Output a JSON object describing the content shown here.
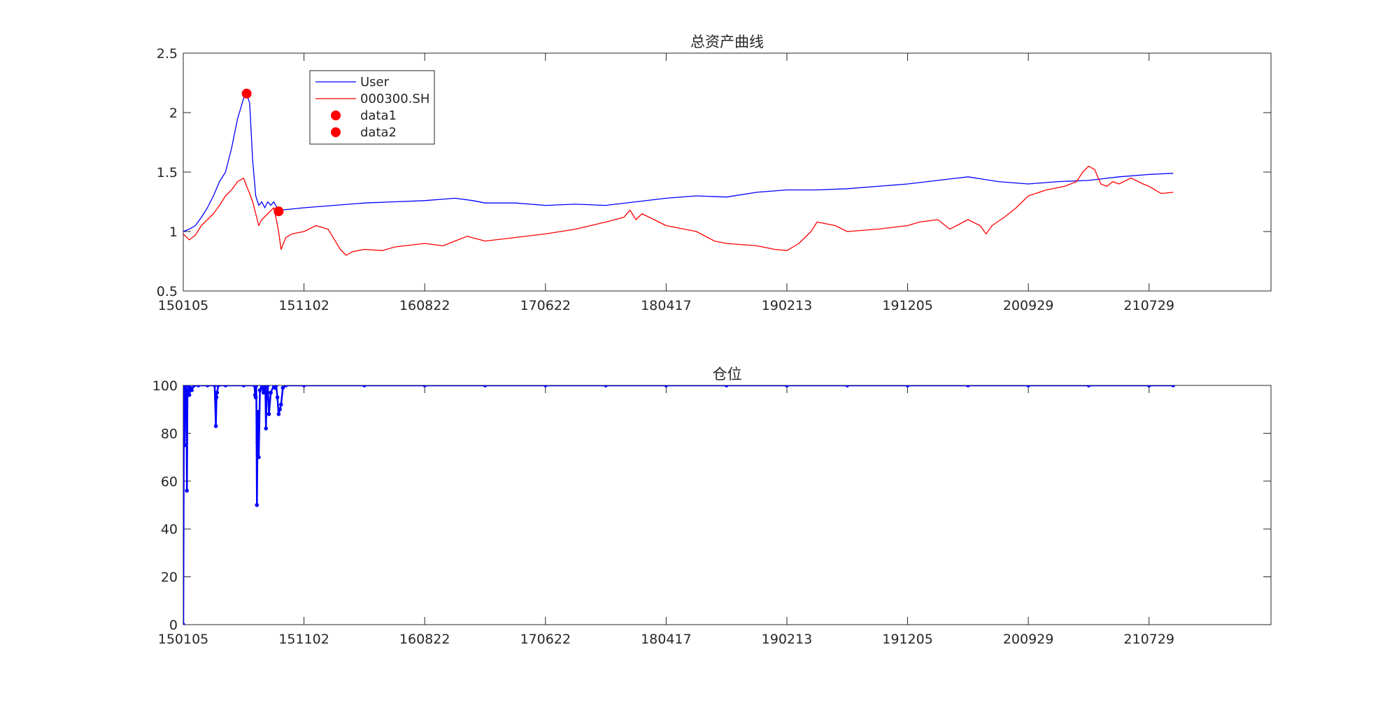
{
  "chart_data": [
    {
      "type": "line",
      "title": "总资产曲线",
      "xlabel": "",
      "ylabel": "",
      "ylim": [
        0.5,
        2.5
      ],
      "yticks": [
        "0.5",
        "1",
        "1.5",
        "2",
        "2.5"
      ],
      "x_index_range": [
        0,
        1802
      ],
      "x_ticks": [
        {
          "index": 0,
          "label": "150105"
        },
        {
          "index": 200,
          "label": "151102"
        },
        {
          "index": 400,
          "label": "160822"
        },
        {
          "index": 600,
          "label": "170622"
        },
        {
          "index": 800,
          "label": "180417"
        },
        {
          "index": 1000,
          "label": "190213"
        },
        {
          "index": 1200,
          "label": "191205"
        },
        {
          "index": 1400,
          "label": "200929"
        },
        {
          "index": 1600,
          "label": "210729"
        }
      ],
      "grid": false,
      "legend_position": "top-left",
      "series": [
        {
          "name": "User",
          "color": "#0000ff",
          "x": [
            0,
            10,
            20,
            30,
            40,
            50,
            60,
            70,
            80,
            90,
            100,
            105,
            110,
            115,
            120,
            125,
            130,
            135,
            140,
            145,
            150,
            155,
            158,
            162,
            200,
            250,
            300,
            350,
            400,
            450,
            480,
            500,
            550,
            600,
            650,
            700,
            750,
            800,
            850,
            900,
            950,
            1000,
            1050,
            1100,
            1150,
            1200,
            1250,
            1300,
            1350,
            1400,
            1450,
            1500,
            1550,
            1600,
            1640
          ],
          "y": [
            1.0,
            1.02,
            1.05,
            1.12,
            1.2,
            1.3,
            1.42,
            1.5,
            1.7,
            1.95,
            2.12,
            2.16,
            2.08,
            1.6,
            1.3,
            1.22,
            1.25,
            1.2,
            1.25,
            1.22,
            1.25,
            1.2,
            1.19,
            1.18,
            1.2,
            1.22,
            1.24,
            1.25,
            1.26,
            1.28,
            1.26,
            1.24,
            1.24,
            1.22,
            1.23,
            1.22,
            1.25,
            1.28,
            1.3,
            1.29,
            1.33,
            1.35,
            1.35,
            1.36,
            1.38,
            1.4,
            1.43,
            1.46,
            1.42,
            1.4,
            1.42,
            1.43,
            1.46,
            1.48,
            1.49
          ]
        },
        {
          "name": "000300.SH",
          "color": "#ff0000",
          "x": [
            0,
            10,
            20,
            30,
            40,
            50,
            60,
            70,
            80,
            90,
            100,
            105,
            110,
            115,
            120,
            125,
            130,
            140,
            150,
            155,
            158,
            162,
            170,
            180,
            200,
            220,
            240,
            260,
            270,
            280,
            300,
            330,
            350,
            400,
            430,
            450,
            470,
            500,
            550,
            600,
            650,
            700,
            730,
            740,
            750,
            760,
            800,
            850,
            880,
            900,
            950,
            980,
            1000,
            1020,
            1040,
            1050,
            1080,
            1100,
            1150,
            1200,
            1220,
            1250,
            1270,
            1300,
            1320,
            1330,
            1340,
            1360,
            1380,
            1400,
            1430,
            1460,
            1480,
            1490,
            1500,
            1510,
            1520,
            1530,
            1540,
            1550,
            1570,
            1590,
            1600,
            1620,
            1640
          ],
          "y": [
            0.98,
            0.93,
            0.97,
            1.05,
            1.1,
            1.15,
            1.22,
            1.3,
            1.35,
            1.42,
            1.45,
            1.38,
            1.32,
            1.25,
            1.15,
            1.05,
            1.1,
            1.15,
            1.2,
            1.08,
            1.0,
            0.85,
            0.95,
            0.98,
            1.0,
            1.05,
            1.02,
            0.85,
            0.8,
            0.83,
            0.85,
            0.84,
            0.87,
            0.9,
            0.88,
            0.92,
            0.96,
            0.92,
            0.95,
            0.98,
            1.02,
            1.08,
            1.12,
            1.18,
            1.1,
            1.15,
            1.05,
            1.0,
            0.92,
            0.9,
            0.88,
            0.85,
            0.84,
            0.9,
            1.0,
            1.08,
            1.05,
            1.0,
            1.02,
            1.05,
            1.08,
            1.1,
            1.02,
            1.1,
            1.05,
            0.98,
            1.05,
            1.12,
            1.2,
            1.3,
            1.35,
            1.38,
            1.42,
            1.5,
            1.55,
            1.52,
            1.4,
            1.38,
            1.42,
            1.4,
            1.45,
            1.4,
            1.38,
            1.32,
            1.33
          ]
        }
      ],
      "markers": [
        {
          "name": "data1",
          "color": "#ff0000",
          "x": 105,
          "y": 2.16
        },
        {
          "name": "data2",
          "color": "#ff0000",
          "x": 158,
          "y": 1.17
        }
      ]
    },
    {
      "type": "line",
      "title": "仓位",
      "xlabel": "",
      "ylabel": "",
      "ylim": [
        0,
        100
      ],
      "yticks": [
        "0",
        "20",
        "40",
        "60",
        "80",
        "100"
      ],
      "x_index_range": [
        0,
        1802
      ],
      "x_ticks": [
        {
          "index": 0,
          "label": "150105"
        },
        {
          "index": 200,
          "label": "151102"
        },
        {
          "index": 400,
          "label": "160822"
        },
        {
          "index": 600,
          "label": "170622"
        },
        {
          "index": 800,
          "label": "180417"
        },
        {
          "index": 1000,
          "label": "190213"
        },
        {
          "index": 1200,
          "label": "191205"
        },
        {
          "index": 1400,
          "label": "200929"
        },
        {
          "index": 1600,
          "label": "210729"
        }
      ],
      "grid": false,
      "series": [
        {
          "name": "",
          "color": "#0000ff",
          "marker": "dot",
          "x": [
            0,
            1,
            2,
            3,
            4,
            5,
            6,
            7,
            8,
            9,
            10,
            12,
            14,
            18,
            25,
            40,
            52,
            54,
            55,
            56,
            58,
            70,
            100,
            118,
            119,
            120,
            121,
            122,
            123,
            124,
            125,
            127,
            130,
            133,
            135,
            136,
            137,
            138,
            140,
            142,
            145,
            150,
            152,
            154,
            156,
            158,
            160,
            162,
            165,
            170,
            200,
            300,
            400,
            500,
            600,
            700,
            800,
            900,
            1000,
            1100,
            1200,
            1300,
            1400,
            1500,
            1600,
            1640
          ],
          "y": [
            0,
            100,
            75,
            100,
            88,
            100,
            56,
            97,
            98,
            100,
            96,
            99,
            98,
            100,
            100,
            100,
            100,
            83,
            95,
            97,
            100,
            100,
            100,
            100,
            96,
            95,
            100,
            50,
            76,
            89,
            70,
            98,
            100,
            97,
            99,
            100,
            82,
            95,
            100,
            88,
            97,
            100,
            99,
            100,
            95,
            88,
            90,
            92,
            99,
            100,
            100,
            100,
            100,
            100,
            100,
            100,
            100,
            100,
            100,
            100,
            100,
            100,
            100,
            100,
            100,
            100
          ]
        }
      ]
    }
  ]
}
